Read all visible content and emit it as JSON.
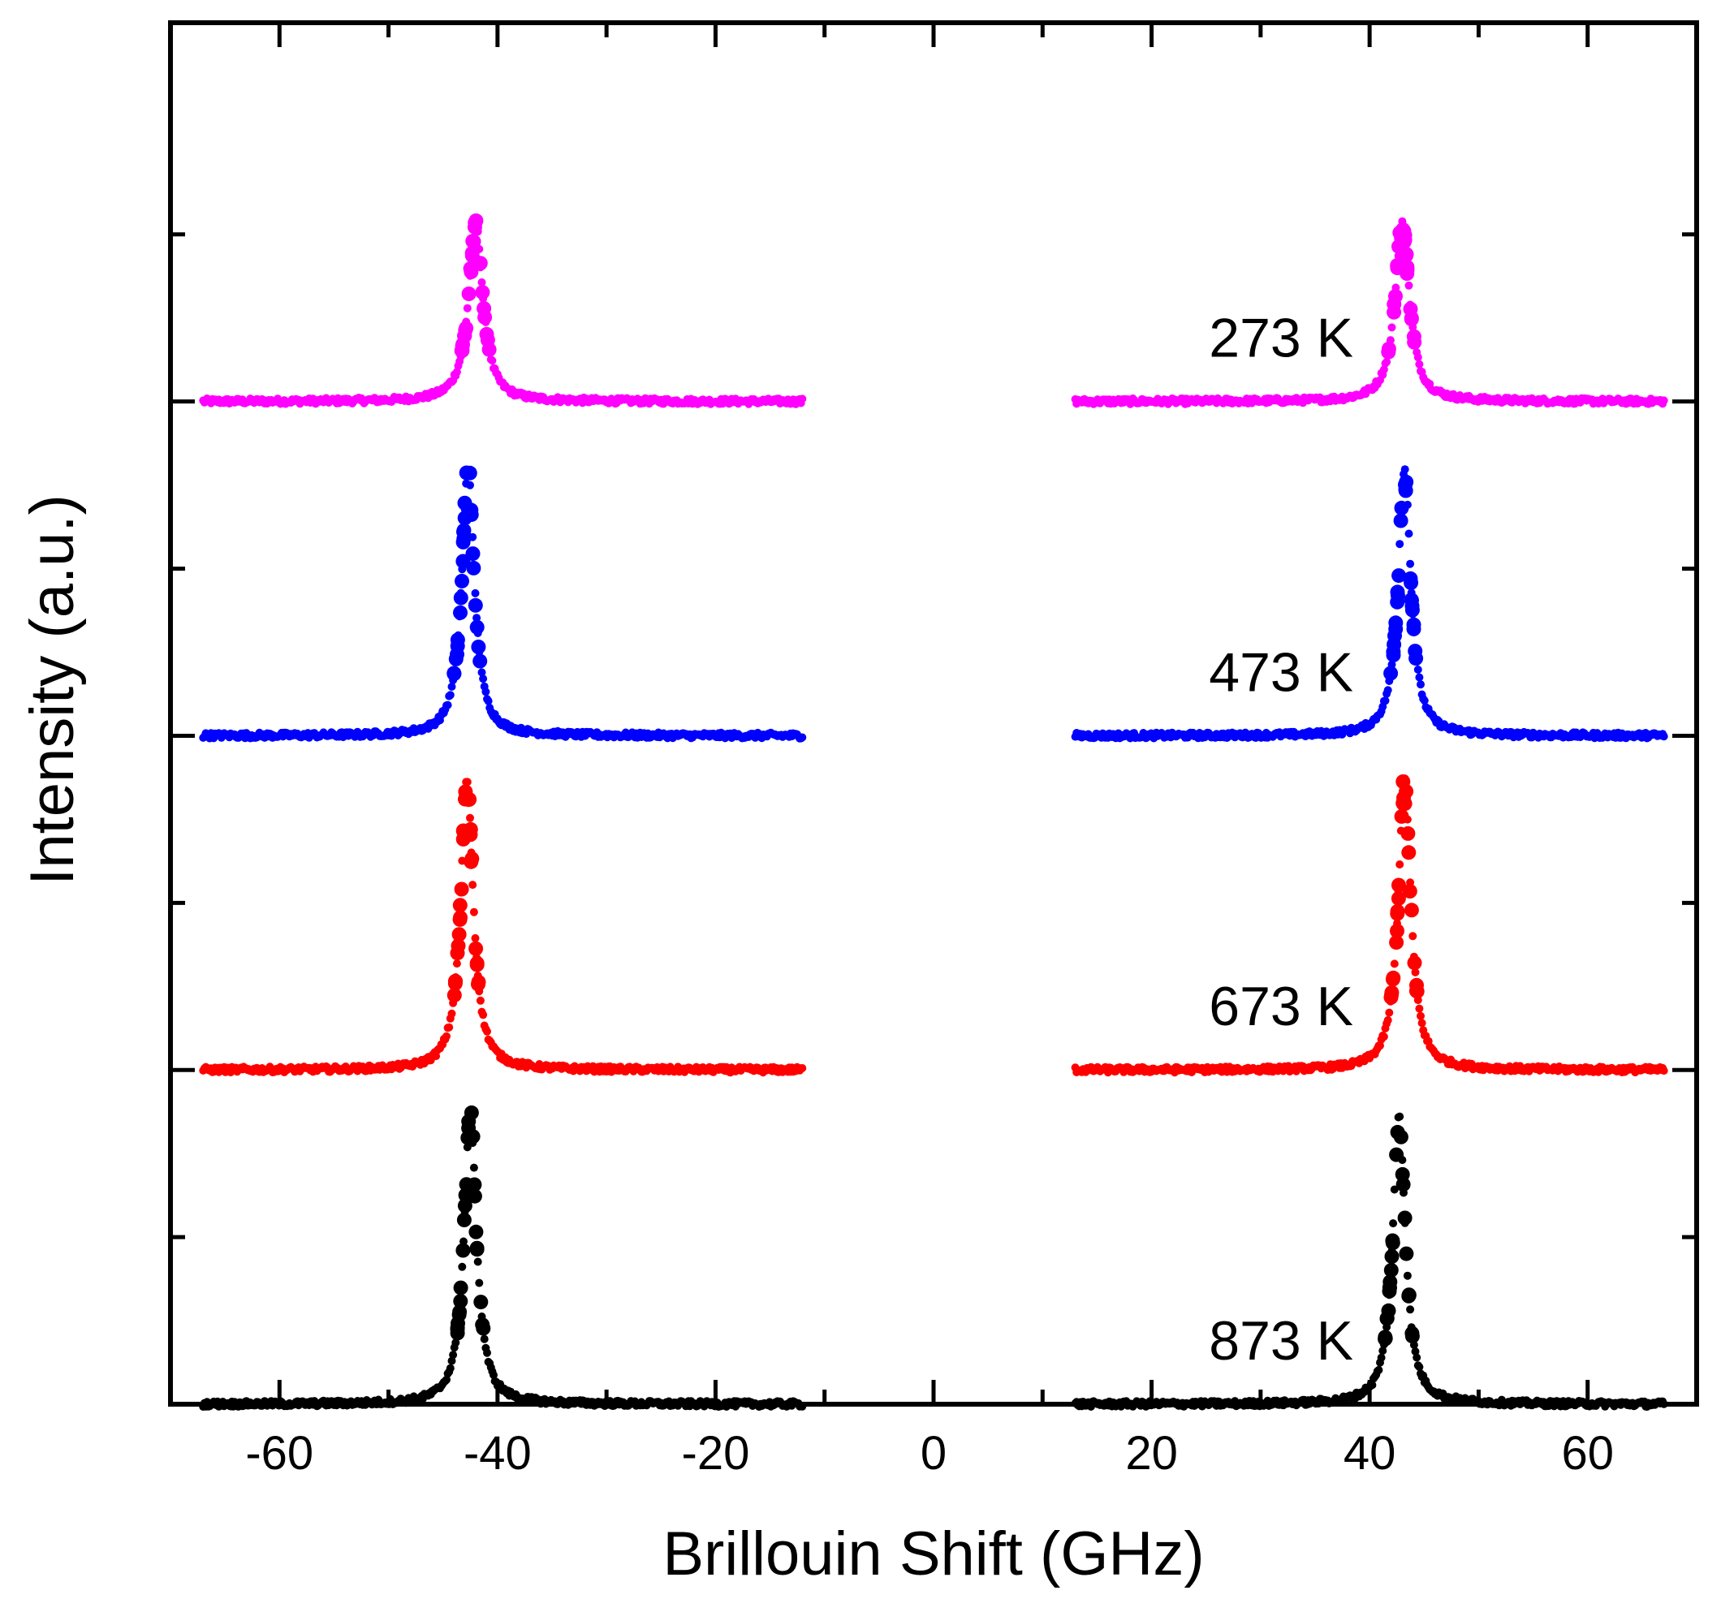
{
  "chart_data": {
    "type": "scatter",
    "title": "",
    "xlabel": "Brillouin Shift (GHz)",
    "ylabel": "Intensity (a.u.)",
    "xlim": [
      -70,
      70
    ],
    "ylim": [
      0,
      6.2
    ],
    "xticks": [
      -60,
      -40,
      -20,
      0,
      20,
      40,
      60
    ],
    "xtick_labels": [
      "-60",
      "-40",
      "-20",
      "0",
      "20",
      "40",
      "60"
    ],
    "ytick_labels_shown": false,
    "x_data_ranges": [
      [
        -67,
        -12
      ],
      [
        13,
        67
      ]
    ],
    "series": [
      {
        "name": "273 K",
        "label": "273 K",
        "color": "#ff00ff",
        "baseline": 4.5,
        "peak_height": 0.8,
        "peaks": [
          -42.0,
          43.0
        ],
        "width": 0.8
      },
      {
        "name": "473 K",
        "label": "473 K",
        "color": "#0000ff",
        "baseline": 3.0,
        "peak_height": 1.2,
        "peaks": [
          -42.7,
          43.2
        ],
        "width": 0.7
      },
      {
        "name": "673 K",
        "label": "673 K",
        "color": "#ff0000",
        "baseline": 1.5,
        "peak_height": 1.3,
        "peaks": [
          -42.8,
          43.2
        ],
        "width": 0.7
      },
      {
        "name": "873 K",
        "label": "873 K",
        "color": "#000000",
        "baseline": 0.0,
        "peak_height": 1.3,
        "peaks": [
          -42.5,
          42.7
        ],
        "width": 0.7
      }
    ]
  }
}
